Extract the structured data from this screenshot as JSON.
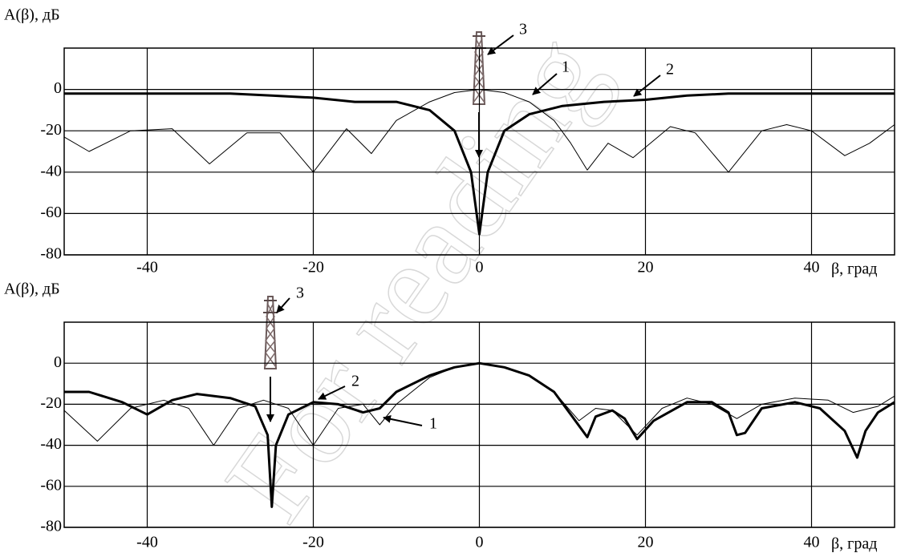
{
  "watermark": "For reading",
  "chart_data": [
    {
      "type": "line",
      "ylabel": "A(β), дБ",
      "xlabel": "β, град",
      "xlim": [
        -50,
        50
      ],
      "xticks": [
        -40,
        -20,
        0,
        20,
        40
      ],
      "ylim": [
        -80,
        20
      ],
      "yticks": [
        -80,
        -60,
        -40,
        -20,
        0
      ],
      "grid": true,
      "series": [
        {
          "name": "1",
          "color": "#000000",
          "width": 1,
          "x": [
            -50,
            -47,
            -42,
            -37,
            -32.5,
            -28,
            -24,
            -20,
            -16,
            -13,
            -10,
            -6,
            -3,
            0,
            3,
            6,
            9,
            11,
            13,
            15.5,
            18.5,
            23,
            26,
            30,
            34,
            37,
            40,
            44,
            47,
            50
          ],
          "values": [
            -23,
            -30,
            -20,
            -19,
            -36,
            -21,
            -21,
            -40,
            -19,
            -31,
            -15,
            -6,
            -1.5,
            0,
            -1.5,
            -6,
            -15,
            -26,
            -39,
            -26,
            -33,
            -18,
            -21,
            -40,
            -20,
            -17,
            -20,
            -32,
            -26,
            -17
          ]
        },
        {
          "name": "2",
          "color": "#000000",
          "width": 3,
          "x": [
            -50,
            -30,
            -25,
            -20,
            -15,
            -10,
            -6,
            -3,
            -1,
            0,
            1,
            3,
            6,
            10,
            15,
            20,
            25,
            30,
            50
          ],
          "values": [
            -2,
            -2,
            -3,
            -4,
            -6,
            -6,
            -10,
            -20,
            -40,
            -70,
            -40,
            -20,
            -12,
            -8,
            -6,
            -5,
            -3,
            -2,
            -2
          ]
        }
      ],
      "annotations": [
        {
          "text": "1"
        },
        {
          "text": "2"
        },
        {
          "text": "3"
        }
      ]
    },
    {
      "type": "line",
      "ylabel": "A(β), дБ",
      "xlabel": "β, град",
      "xlim": [
        -50,
        50
      ],
      "xticks": [
        -40,
        -20,
        0,
        20,
        40
      ],
      "ylim": [
        -80,
        20
      ],
      "yticks": [
        -80,
        -60,
        -40,
        -20,
        0
      ],
      "grid": true,
      "series": [
        {
          "name": "1",
          "color": "#000000",
          "width": 1,
          "x": [
            -50,
            -46,
            -42,
            -38,
            -35,
            -32,
            -29,
            -26,
            -23,
            -20,
            -17,
            -14,
            -12,
            -10,
            -6,
            -3,
            0,
            3,
            6,
            9,
            12,
            14,
            16,
            19,
            22,
            25,
            28,
            31,
            34,
            38,
            42,
            45,
            48,
            50
          ],
          "values": [
            -23,
            -38,
            -22,
            -18,
            -22,
            -40,
            -22,
            -18,
            -22,
            -40,
            -22,
            -20,
            -30,
            -20,
            -7,
            -2,
            0,
            -2,
            -6,
            -14,
            -28,
            -22,
            -23,
            -35,
            -22,
            -17,
            -20,
            -27,
            -20,
            -17,
            -18,
            -24,
            -21,
            -16
          ]
        },
        {
          "name": "2",
          "color": "#000000",
          "width": 3,
          "x": [
            -50,
            -47,
            -43,
            -40,
            -37,
            -34,
            -30,
            -27,
            -25.5,
            -25,
            -24.5,
            -23,
            -20,
            -17,
            -14,
            -12,
            -10,
            -6,
            -3,
            0,
            3,
            6,
            9,
            11,
            13,
            14,
            16,
            17.5,
            19,
            21,
            25,
            28,
            30,
            31,
            32,
            34,
            38,
            41,
            44,
            45.5,
            46.5,
            48,
            50
          ],
          "values": [
            -14,
            -14,
            -19,
            -25,
            -18,
            -15,
            -17,
            -21,
            -35,
            -70,
            -40,
            -25,
            -19,
            -20,
            -24,
            -22,
            -14,
            -6,
            -2,
            0,
            -2,
            -6,
            -14,
            -25,
            -36,
            -26,
            -23,
            -27,
            -37,
            -28,
            -19,
            -19,
            -24,
            -35,
            -34,
            -22,
            -19,
            -22,
            -33,
            -46,
            -33,
            -24,
            -19
          ]
        }
      ],
      "annotations": [
        {
          "text": "1"
        },
        {
          "text": "2"
        },
        {
          "text": "3"
        }
      ]
    }
  ]
}
